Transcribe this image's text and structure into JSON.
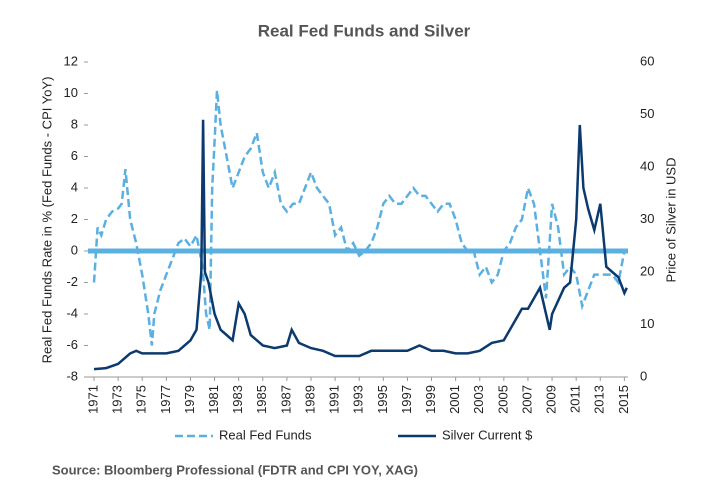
{
  "chart_data": {
    "type": "line",
    "title": "Real Fed Funds and Silver",
    "ylabel": "Real Fed Funds Rate in % (Fed Funds - CPI YoY)",
    "y2label": "Price of Silver in USD",
    "source": "Source: Bloomberg Professional (FDTR and CPI YOY, XAG)",
    "xlim": [
      1970.5,
      2015.3
    ],
    "xticks": [
      1971,
      1973,
      1975,
      1977,
      1979,
      1981,
      1983,
      1985,
      1987,
      1989,
      1991,
      1993,
      1995,
      1997,
      1999,
      2001,
      2003,
      2005,
      2007,
      2009,
      2011,
      2013,
      2015
    ],
    "ylim": [
      -8,
      12
    ],
    "yticks": [
      -8,
      -6,
      -4,
      -2,
      0,
      2,
      4,
      6,
      8,
      10,
      12
    ],
    "y2lim": [
      0,
      60
    ],
    "y2ticks": [
      0,
      10,
      20,
      30,
      40,
      50,
      60
    ],
    "zero_line": true,
    "zero_line_color": "#5ab0e0",
    "series": [
      {
        "name": "Real Fed Funds",
        "color": "#5ab0e0",
        "line_style": "dashed",
        "axis": "y",
        "x": [
          1971.0,
          1971.3,
          1971.6,
          1972.0,
          1972.5,
          1973.0,
          1973.3,
          1973.6,
          1974.0,
          1974.5,
          1975.0,
          1975.5,
          1975.8,
          1976.0,
          1976.5,
          1977.0,
          1977.5,
          1978.0,
          1978.5,
          1979.0,
          1979.5,
          1980.0,
          1980.3,
          1980.6,
          1980.8,
          1981.0,
          1981.2,
          1981.5,
          1982.0,
          1982.5,
          1983.0,
          1983.5,
          1984.0,
          1984.5,
          1985.0,
          1985.5,
          1986.0,
          1986.5,
          1987.0,
          1987.5,
          1988.0,
          1988.5,
          1989.0,
          1989.5,
          1990.0,
          1990.5,
          1991.0,
          1991.5,
          1992.0,
          1992.5,
          1993.0,
          1993.5,
          1994.0,
          1994.5,
          1995.0,
          1995.5,
          1996.0,
          1996.5,
          1997.0,
          1997.5,
          1998.0,
          1998.5,
          1999.0,
          1999.5,
          2000.0,
          2000.5,
          2001.0,
          2001.5,
          2002.0,
          2002.5,
          2003.0,
          2003.5,
          2004.0,
          2004.5,
          2005.0,
          2005.5,
          2006.0,
          2006.5,
          2007.0,
          2007.5,
          2008.0,
          2008.5,
          2009.0,
          2009.5,
          2010.0,
          2010.5,
          2011.0,
          2011.5,
          2012.0,
          2012.5,
          2013.0,
          2013.5,
          2014.0,
          2014.5,
          2015.0
        ],
        "values": [
          -2,
          1.5,
          1,
          2,
          2.5,
          2.7,
          3,
          5.2,
          2,
          0.5,
          -1.5,
          -4,
          -6,
          -4,
          -2.5,
          -1.5,
          -0.5,
          0.5,
          0.8,
          0.3,
          1,
          -1,
          -4,
          -5,
          4,
          7,
          10.2,
          8,
          6,
          4,
          5,
          6,
          6.5,
          7.5,
          5,
          4,
          5,
          3,
          2.5,
          3,
          3,
          4,
          5,
          4,
          3.5,
          3,
          1,
          1.5,
          0,
          0.5,
          -0.3,
          0,
          0.5,
          1.5,
          3,
          3.5,
          3,
          3,
          3.5,
          4,
          3.5,
          3.5,
          3,
          2.5,
          3,
          3,
          2,
          0.5,
          0,
          0,
          -1.5,
          -1,
          -2,
          -1.5,
          0,
          0.5,
          1.5,
          2,
          4,
          3,
          0,
          -3,
          3,
          1.5,
          -1.5,
          -1,
          -1.5,
          -3.5,
          -2.5,
          -1.5,
          -1.5,
          -1.5,
          -1.5,
          -2,
          0
        ]
      },
      {
        "name": "Silver Current $",
        "color": "#0b3a6e",
        "line_style": "solid",
        "axis": "y2",
        "x": [
          1971,
          1972,
          1973,
          1974,
          1974.5,
          1975,
          1976,
          1977,
          1978,
          1979,
          1979.5,
          1979.9,
          1980.05,
          1980.2,
          1980.5,
          1981,
          1981.5,
          1982,
          1982.5,
          1983,
          1983.5,
          1984,
          1985,
          1986,
          1987,
          1987.4,
          1988,
          1989,
          1990,
          1991,
          1992,
          1993,
          1994,
          1995,
          1996,
          1997,
          1998,
          1999,
          2000,
          2001,
          2002,
          2003,
          2004,
          2005,
          2006,
          2006.5,
          2007,
          2008,
          2008.8,
          2009,
          2010,
          2010.5,
          2011,
          2011.3,
          2011.6,
          2012,
          2012.5,
          2013,
          2013.5,
          2014,
          2014.5,
          2015,
          2015.2
        ],
        "values": [
          1.5,
          1.7,
          2.5,
          4.5,
          5,
          4.5,
          4.5,
          4.5,
          5,
          7,
          9,
          20,
          49,
          20,
          18,
          12,
          9,
          8,
          7,
          14,
          12,
          8,
          6,
          5.5,
          6,
          9,
          6.5,
          5.5,
          5,
          4,
          4,
          4,
          5,
          5,
          5,
          5,
          6,
          5,
          5,
          4.5,
          4.5,
          5,
          6.5,
          7,
          11,
          13,
          13,
          17,
          9,
          12,
          17,
          18,
          30,
          48,
          36,
          32,
          28,
          33,
          21,
          20,
          19,
          16,
          17
        ]
      }
    ]
  }
}
